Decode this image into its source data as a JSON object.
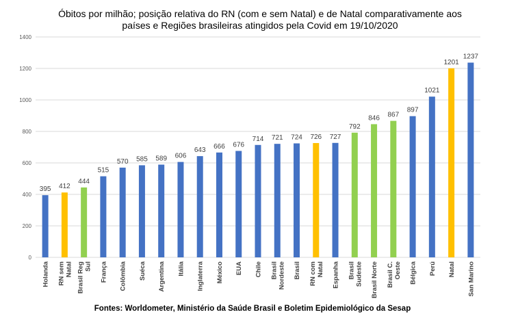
{
  "title_line1": "Óbitos por milhão; posição relativa do RN (com e sem Natal) e de Natal comparativamente aos",
  "title_line2": "países e Regiões brasileiras atingidos pela Covid em 19/10/2020",
  "footer": "Fontes: Worldometer, Ministério da Saúde Brasil e Boletim Epidemiológico da Sesap",
  "chart_data": {
    "type": "bar",
    "title": "Óbitos por milhão; posição relativa do RN (com e sem Natal) e de Natal comparativamente aos países e Regiões brasileiras atingidos pela Covid em 19/10/2020",
    "categories": [
      [
        "Holanda"
      ],
      [
        "RN sem",
        "Natal"
      ],
      [
        "Brasil Reg",
        "Sul"
      ],
      [
        "França"
      ],
      [
        "Colômbia"
      ],
      [
        "Suéca"
      ],
      [
        "Argentina"
      ],
      [
        "Itália"
      ],
      [
        "Inglaterra"
      ],
      [
        "México"
      ],
      [
        "EUA"
      ],
      [
        "Chile"
      ],
      [
        "Brasil",
        "Nordeste"
      ],
      [
        "Brasil"
      ],
      [
        "RN com",
        "Natal"
      ],
      [
        "Espanha"
      ],
      [
        "Brasil",
        "Sudeste"
      ],
      [
        "Brasil Norte"
      ],
      [
        "Brasil C.",
        "Oeste"
      ],
      [
        "Bélgica"
      ],
      [
        "Perú"
      ],
      [
        "Natal"
      ],
      [
        "San Marino"
      ]
    ],
    "values": [
      395,
      412,
      444,
      515,
      570,
      585,
      589,
      606,
      643,
      666,
      676,
      714,
      721,
      724,
      726,
      727,
      792,
      846,
      867,
      897,
      1021,
      1201,
      1237
    ],
    "bar_colors": [
      "#4472C4",
      "#FFC000",
      "#92D050",
      "#4472C4",
      "#4472C4",
      "#4472C4",
      "#4472C4",
      "#4472C4",
      "#4472C4",
      "#4472C4",
      "#4472C4",
      "#4472C4",
      "#4472C4",
      "#4472C4",
      "#FFC000",
      "#4472C4",
      "#92D050",
      "#92D050",
      "#92D050",
      "#4472C4",
      "#4472C4",
      "#FFC000",
      "#4472C4"
    ],
    "yticks": [
      0,
      200,
      400,
      600,
      800,
      1000,
      1200,
      1400
    ],
    "ylim": [
      0,
      1400
    ],
    "grid": true,
    "legend": false,
    "gridline_color": "#D9D9D9"
  }
}
